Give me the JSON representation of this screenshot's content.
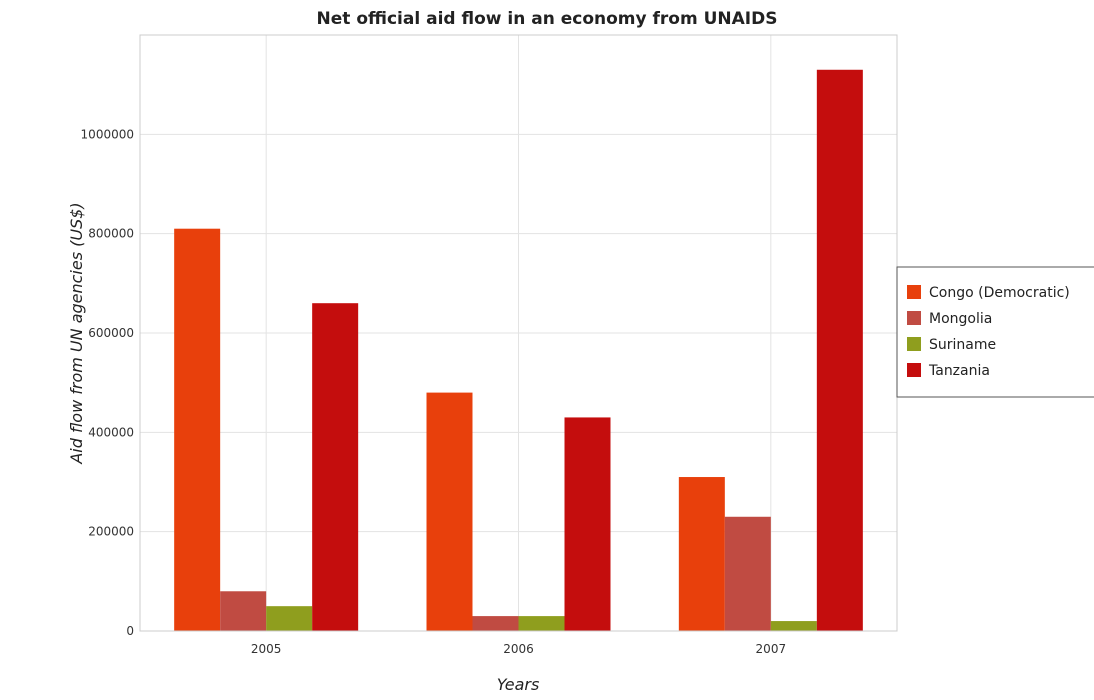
{
  "chart_data": {
    "type": "bar",
    "title": "Net official aid flow in an economy from UNAIDS",
    "xlabel": "Years",
    "ylabel": "Aid flow from UN agencies (US$)",
    "categories": [
      "2005",
      "2006",
      "2007"
    ],
    "series": [
      {
        "name": "Congo (Democratic)",
        "color": "#e8400c",
        "values": [
          810000,
          480000,
          310000
        ]
      },
      {
        "name": "Mongolia",
        "color": "#c04b42",
        "values": [
          80000,
          30000,
          230000
        ]
      },
      {
        "name": "Suriname",
        "color": "#8f9e1e",
        "values": [
          50000,
          30000,
          20000
        ]
      },
      {
        "name": "Tanzania",
        "color": "#c40d0d",
        "values": [
          660000,
          430000,
          1130000
        ]
      }
    ],
    "ylim": [
      0,
      1200000
    ],
    "yticks": [
      0,
      200000,
      400000,
      600000,
      800000,
      1000000
    ],
    "ytick_labels": [
      "0",
      "200000",
      "400000",
      "600000",
      "800000",
      "1000000"
    ],
    "grid": true,
    "legend": "right"
  }
}
